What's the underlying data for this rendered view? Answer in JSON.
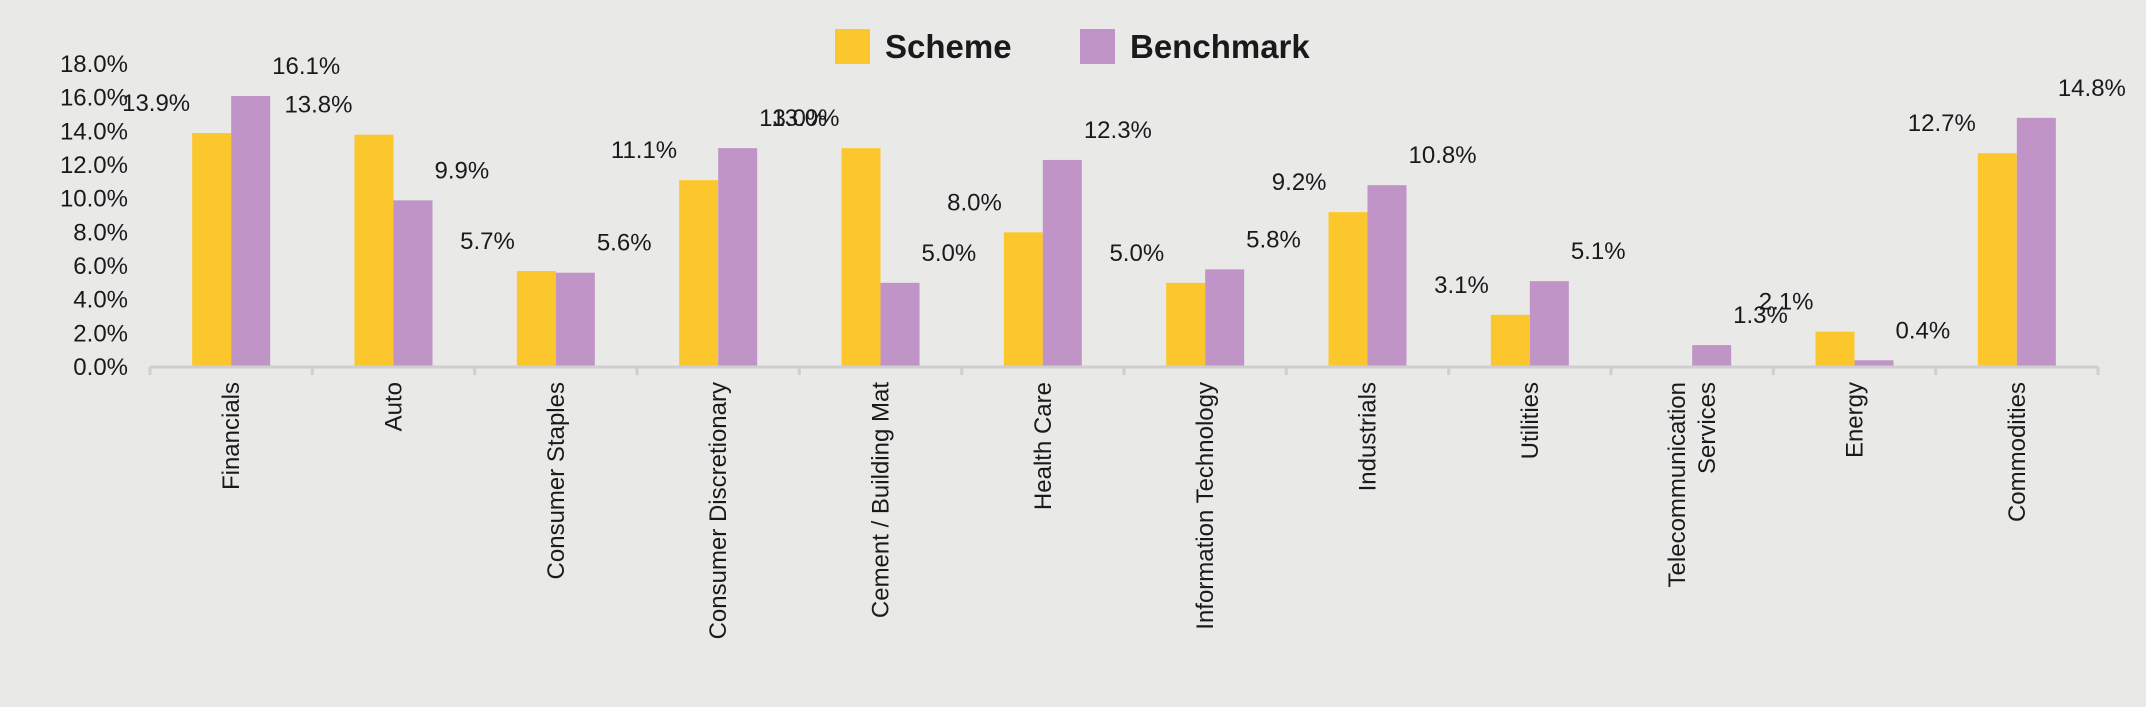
{
  "chart_data": {
    "type": "bar",
    "categories": [
      "Financials",
      "Auto",
      "Consumer Staples",
      "Consumer Discretionary",
      "Cement / Building Mat",
      "Health Care",
      "Information Technology",
      "Industrials",
      "Utilities",
      "Telecommunication Services",
      "Energy",
      "Commodities"
    ],
    "category_lines": [
      [
        "Financials"
      ],
      [
        "Auto"
      ],
      [
        "Consumer Staples"
      ],
      [
        "Consumer Discretionary"
      ],
      [
        "Cement / Building Mat"
      ],
      [
        "Health Care"
      ],
      [
        "Information Technology"
      ],
      [
        "Industrials"
      ],
      [
        "Utilities"
      ],
      [
        "Telecommunication",
        "Services"
      ],
      [
        "Energy"
      ],
      [
        "Commodities"
      ]
    ],
    "series": [
      {
        "name": "Scheme",
        "color": "#fcc72c",
        "values": [
          13.9,
          13.8,
          5.7,
          11.1,
          13.0,
          8.0,
          5.0,
          9.2,
          3.1,
          null,
          2.1,
          12.7
        ],
        "labels": [
          "13.9%",
          "13.8%",
          "5.7%",
          "11.1%",
          "13.0%",
          "8.0%",
          "5.0%",
          "9.2%",
          "3.1%",
          "",
          "2.1%",
          "12.7%"
        ]
      },
      {
        "name": "Benchmark",
        "color": "#c094c6",
        "values": [
          16.1,
          9.9,
          5.6,
          13.0,
          5.0,
          12.3,
          5.8,
          10.8,
          5.1,
          1.3,
          0.4,
          14.8
        ],
        "labels": [
          "16.1%",
          "9.9%",
          "5.6%",
          "13.0%",
          "5.0%",
          "12.3%",
          "5.8%",
          "10.8%",
          "5.1%",
          "1.3%",
          "0.4%",
          "14.8%"
        ]
      }
    ],
    "ylim": [
      0,
      18
    ],
    "yticks": [
      "0.0%",
      "2.0%",
      "4.0%",
      "6.0%",
      "8.0%",
      "10.0%",
      "12.0%",
      "14.0%",
      "16.0%",
      "18.0%"
    ],
    "grid": false,
    "legend_position": "top-center",
    "axis_color": "#cfcfcf"
  }
}
